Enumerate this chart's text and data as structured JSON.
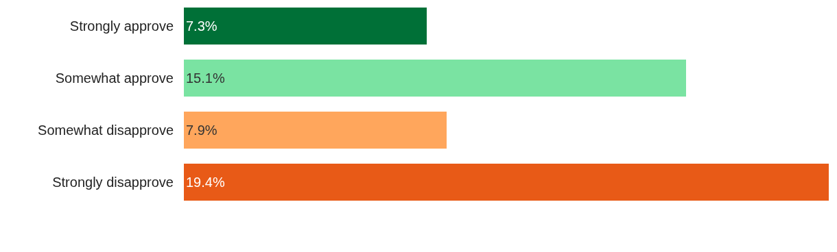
{
  "chart_data": {
    "type": "bar",
    "orientation": "horizontal",
    "categories": [
      "Strongly approve",
      "Somewhat approve",
      "Somewhat disapprove",
      "Strongly disapprove"
    ],
    "values": [
      7.3,
      15.1,
      7.9,
      19.4
    ],
    "colors": [
      "#007037",
      "#7ae3a2",
      "#ffa65c",
      "#e85a17"
    ],
    "value_labels": [
      "7.3%",
      "15.1%",
      "7.9%",
      "19.4%"
    ],
    "xlim": [
      0,
      19.4
    ],
    "tick_labels": "y",
    "legend": false
  }
}
